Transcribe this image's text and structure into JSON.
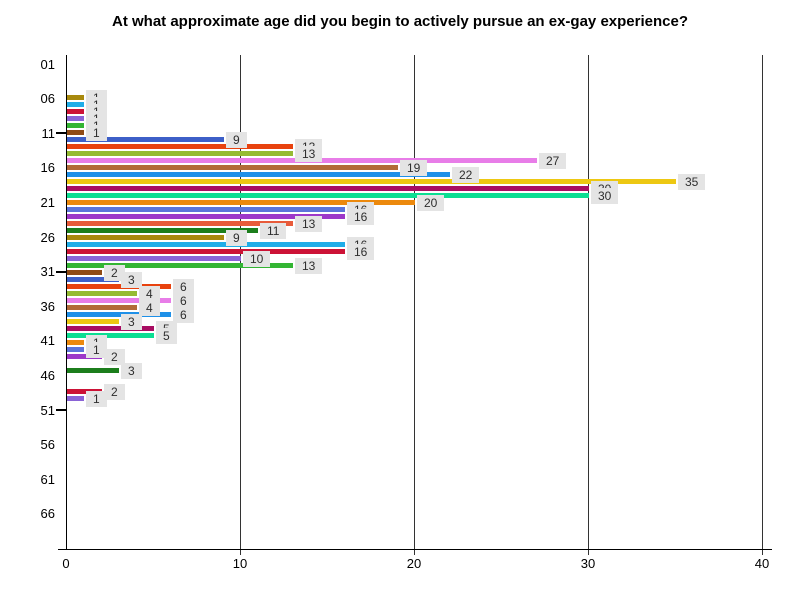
{
  "chart_data": {
    "type": "bar",
    "orientation": "horizontal",
    "title": "At what approximate age did you begin to actively pursue an ex-gay experience?",
    "xlabel": "",
    "ylabel": "",
    "xlim": [
      0,
      40
    ],
    "x_ticks": [
      "0",
      "10",
      "20",
      "30",
      "40"
    ],
    "x_tick_values": [
      0,
      10,
      20,
      30,
      40
    ],
    "y_ticks": [
      "01",
      "06",
      "11",
      "16",
      "21",
      "26",
      "31",
      "36",
      "41",
      "46",
      "51",
      "56",
      "61",
      "66"
    ],
    "y_ticks_with_dash": [
      "11",
      "31",
      "51"
    ],
    "grid": "vertical gridlines only, drawn behind bars",
    "legend_position": "none",
    "value_labels": "gray box to the right of each bar end",
    "colors": {
      "background": "#ffffff",
      "axis": "#000000",
      "gridline": "#333333",
      "value_label_box": "#e4e4e4",
      "value_label_text": "#2e2e2e"
    },
    "bars": [
      {
        "age": 6,
        "value": 1,
        "color": "#A8890D",
        "color_name": "dark-goldenrod"
      },
      {
        "age": 7,
        "value": 1,
        "color": "#1FADE8",
        "color_name": "sky-blue"
      },
      {
        "age": 8,
        "value": 1,
        "color": "#CC1236",
        "color_name": "crimson"
      },
      {
        "age": 9,
        "value": 1,
        "color": "#8A63D6",
        "color_name": "medium-purple"
      },
      {
        "age": 10,
        "value": 1,
        "color": "#33B533",
        "color_name": "green"
      },
      {
        "age": 11,
        "value": 1,
        "color": "#8F4B15",
        "color_name": "brown"
      },
      {
        "age": 12,
        "value": 9,
        "color": "#3D5FC8",
        "color_name": "royal-blue"
      },
      {
        "age": 13,
        "value": 13,
        "color": "#E8420E",
        "color_name": "orange-red"
      },
      {
        "age": 14,
        "value": 13,
        "color": "#95BB33",
        "color_name": "yellow-green"
      },
      {
        "age": 15,
        "value": 27,
        "color": "#E87DE8",
        "color_name": "orchid"
      },
      {
        "age": 16,
        "value": 19,
        "color": "#B26A38",
        "color_name": "sienna"
      },
      {
        "age": 17,
        "value": 22,
        "color": "#1E90E8",
        "color_name": "dodger-blue"
      },
      {
        "age": 18,
        "value": 35,
        "color": "#EDC812",
        "color_name": "gold"
      },
      {
        "age": 19,
        "value": 30,
        "color": "#A80D62",
        "color_name": "dark-magenta"
      },
      {
        "age": 20,
        "value": 30,
        "color": "#0BDE92",
        "color_name": "spring-green"
      },
      {
        "age": 21,
        "value": 20,
        "color": "#EC890D",
        "color_name": "orange"
      },
      {
        "age": 22,
        "value": 16,
        "color": "#5C74DA",
        "color_name": "slate-blue"
      },
      {
        "age": 23,
        "value": 16,
        "color": "#9D38C9",
        "color_name": "purple"
      },
      {
        "age": 24,
        "value": 13,
        "color": "#E85B3A",
        "color_name": "tomato"
      },
      {
        "age": 25,
        "value": 11,
        "color": "#1C7E1C",
        "color_name": "dark-green"
      },
      {
        "age": 26,
        "value": 9,
        "color": "#A8890D",
        "color_name": "dark-goldenrod"
      },
      {
        "age": 27,
        "value": 16,
        "color": "#1FADE8",
        "color_name": "sky-blue"
      },
      {
        "age": 28,
        "value": 16,
        "color": "#CC1236",
        "color_name": "crimson"
      },
      {
        "age": 29,
        "value": 10,
        "color": "#8A63D6",
        "color_name": "medium-purple"
      },
      {
        "age": 30,
        "value": 13,
        "color": "#33B533",
        "color_name": "green"
      },
      {
        "age": 31,
        "value": 2,
        "color": "#8F4B15",
        "color_name": "brown"
      },
      {
        "age": 32,
        "value": 3,
        "color": "#3D5FC8",
        "color_name": "royal-blue"
      },
      {
        "age": 33,
        "value": 6,
        "color": "#E8420E",
        "color_name": "orange-red"
      },
      {
        "age": 34,
        "value": 4,
        "color": "#95BB33",
        "color_name": "yellow-green"
      },
      {
        "age": 35,
        "value": 6,
        "color": "#E87DE8",
        "color_name": "orchid"
      },
      {
        "age": 36,
        "value": 4,
        "color": "#B26A38",
        "color_name": "sienna"
      },
      {
        "age": 37,
        "value": 6,
        "color": "#1E90E8",
        "color_name": "dodger-blue"
      },
      {
        "age": 38,
        "value": 3,
        "color": "#EDC812",
        "color_name": "gold"
      },
      {
        "age": 39,
        "value": 5,
        "color": "#A80D62",
        "color_name": "dark-magenta"
      },
      {
        "age": 40,
        "value": 5,
        "color": "#0BDE92",
        "color_name": "spring-green"
      },
      {
        "age": 41,
        "value": 1,
        "color": "#EC890D",
        "color_name": "orange"
      },
      {
        "age": 42,
        "value": 1,
        "color": "#5C74DA",
        "color_name": "slate-blue"
      },
      {
        "age": 43,
        "value": 2,
        "color": "#9D38C9",
        "color_name": "purple"
      },
      {
        "age": 44,
        "value": 0,
        "color": "#E85B3A",
        "color_name": "tomato"
      },
      {
        "age": 45,
        "value": 3,
        "color": "#1C7E1C",
        "color_name": "dark-green"
      },
      {
        "age": 46,
        "value": 0,
        "color": "#A8890D",
        "color_name": "dark-goldenrod"
      },
      {
        "age": 47,
        "value": 0,
        "color": "#1FADE8",
        "color_name": "sky-blue"
      },
      {
        "age": 48,
        "value": 2,
        "color": "#CC1236",
        "color_name": "crimson"
      },
      {
        "age": 49,
        "value": 1,
        "color": "#8A63D6",
        "color_name": "medium-purple"
      }
    ]
  }
}
